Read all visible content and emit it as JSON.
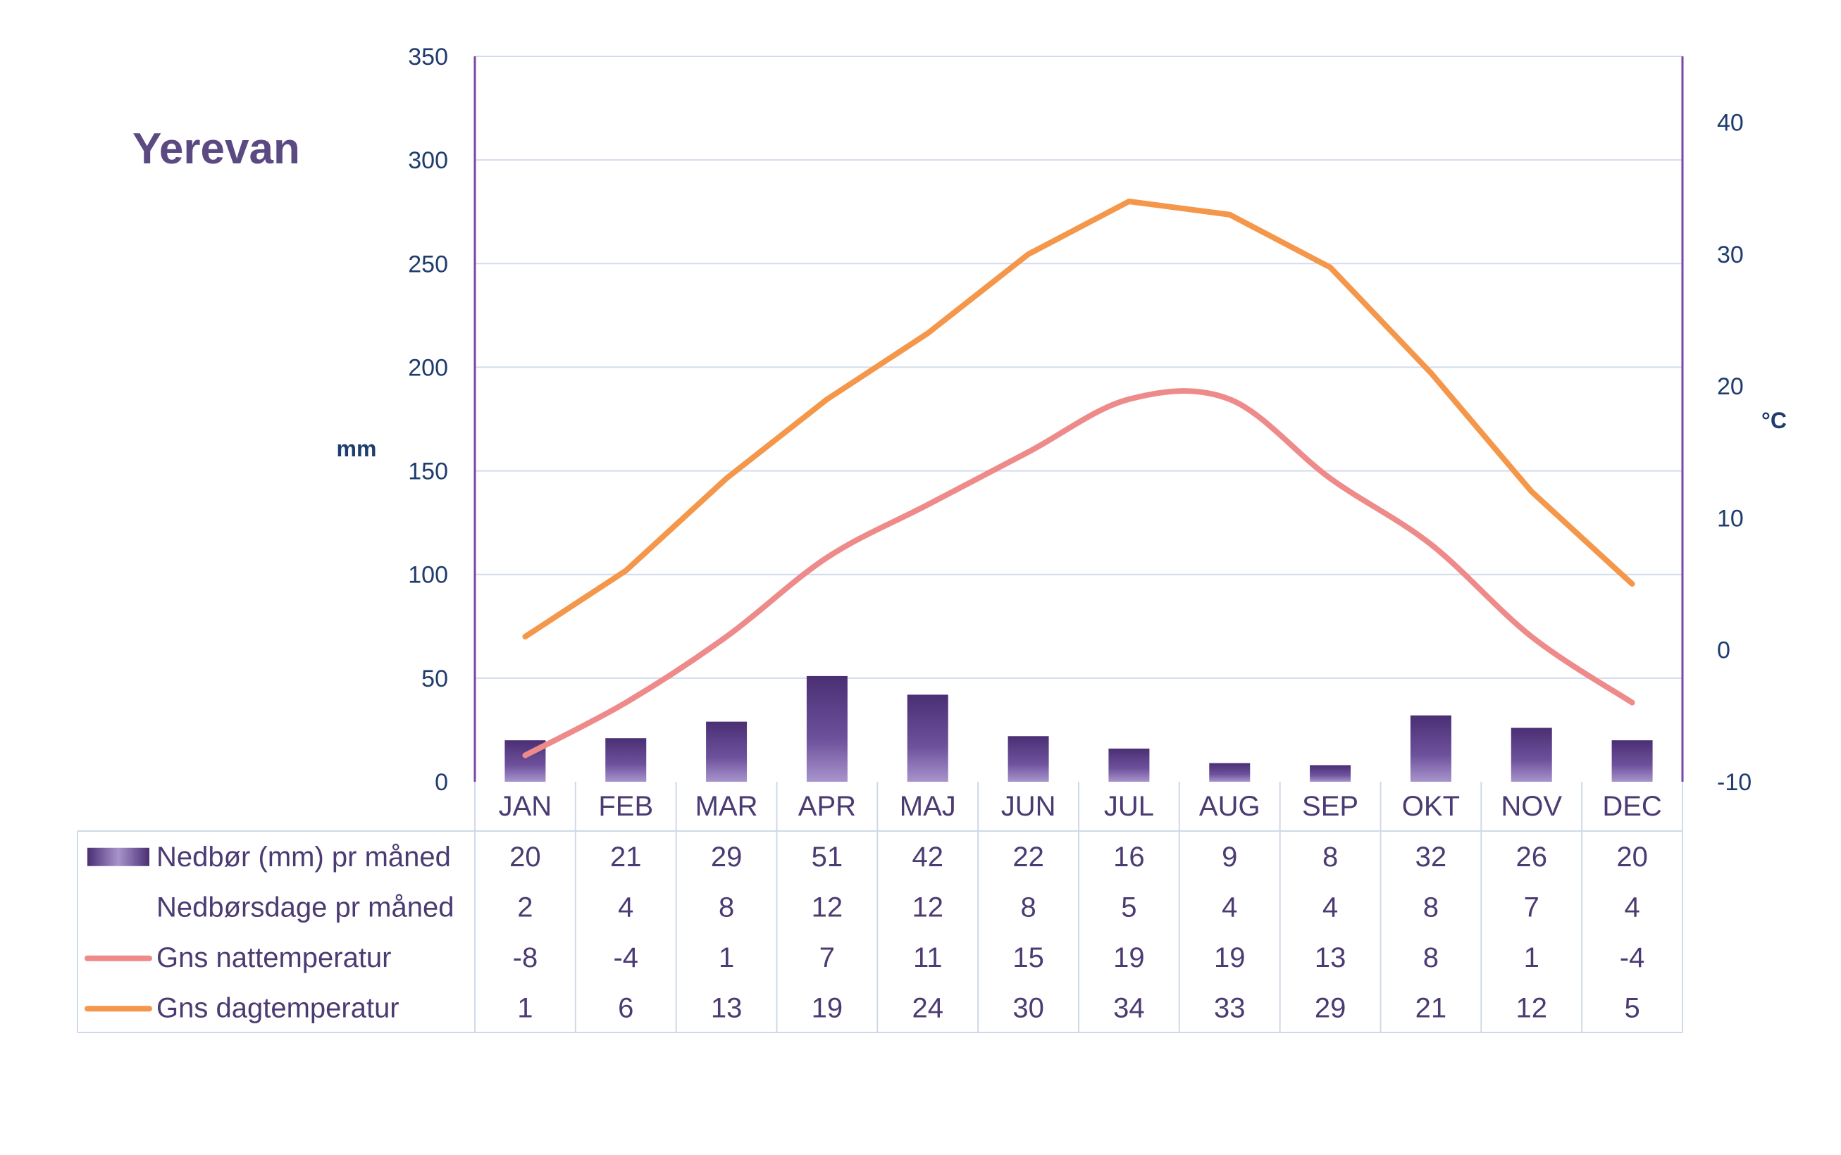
{
  "chart_data": {
    "type": "bar",
    "title": "Yerevan",
    "categories": [
      "JAN",
      "FEB",
      "MAR",
      "APR",
      "MAJ",
      "JUN",
      "JUL",
      "AUG",
      "SEP",
      "OKT",
      "NOV",
      "DEC"
    ],
    "y_left": {
      "label": "mm",
      "min": 0,
      "max": 350,
      "ticks": [
        "0",
        "50",
        "100",
        "150",
        "200",
        "250",
        "300",
        "350"
      ]
    },
    "y_right": {
      "label": "°C",
      "min": -10,
      "max": 45,
      "ticks": [
        "-10",
        "0",
        "10",
        "20",
        "30",
        "40"
      ]
    },
    "grid": true,
    "series": [
      {
        "name": "Nedbør (mm) pr måned",
        "type": "bar",
        "axis": "left",
        "color": "#5a3f86",
        "values": [
          20,
          21,
          29,
          51,
          42,
          22,
          16,
          9,
          8,
          32,
          26,
          20
        ]
      },
      {
        "name": "Nedbørsdage pr måned",
        "type": "table",
        "values": [
          2,
          4,
          8,
          12,
          12,
          8,
          5,
          4,
          4,
          8,
          7,
          4
        ]
      },
      {
        "name": "Gns nattemperatur",
        "type": "line",
        "axis": "right",
        "color": "#ef8a8a",
        "values": [
          -8,
          -4,
          1,
          7,
          11,
          15,
          19,
          19,
          13,
          8,
          1,
          -4
        ]
      },
      {
        "name": "Gns dagtemperatur",
        "type": "line",
        "axis": "right",
        "color": "#f5974a",
        "values": [
          1,
          6,
          13,
          19,
          24,
          30,
          34,
          33,
          29,
          21,
          12,
          5
        ]
      }
    ]
  }
}
